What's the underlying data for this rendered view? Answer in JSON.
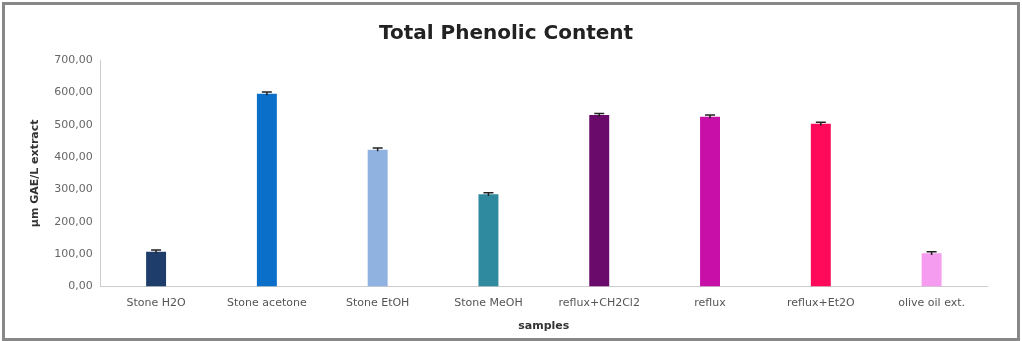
{
  "chart_data": {
    "type": "bar",
    "title": "Total Phenolic Content",
    "xlabel": "samples",
    "ylabel": "µm GAE/L extract",
    "categories": [
      "Stone H2O",
      "Stone acetone",
      "Stone EtOH",
      "Stone MeOH",
      "reflux+CH2Cl2",
      "reflux",
      "reflux+Et2O",
      "olive oil ext."
    ],
    "values": [
      108,
      596,
      423,
      285,
      530,
      525,
      503,
      103
    ],
    "errors": [
      5,
      5,
      5,
      5,
      5,
      5,
      5,
      5
    ],
    "colors": [
      "#1f3d6b",
      "#0a6fc9",
      "#8fb2e0",
      "#2f8aa0",
      "#6a0a6a",
      "#c80fa8",
      "#ff0a5a",
      "#f59cf0"
    ],
    "ylim": [
      0,
      700
    ],
    "yticks": [
      {
        "value": 0,
        "label": "0,00"
      },
      {
        "value": 100,
        "label": "100,00"
      },
      {
        "value": 200,
        "label": "200,00"
      },
      {
        "value": 300,
        "label": "300,00"
      },
      {
        "value": 400,
        "label": "400,00"
      },
      {
        "value": 500,
        "label": "500,00"
      },
      {
        "value": 600,
        "label": "600,00"
      },
      {
        "value": 700,
        "label": "700,00"
      }
    ],
    "grid": false,
    "legend": false
  }
}
